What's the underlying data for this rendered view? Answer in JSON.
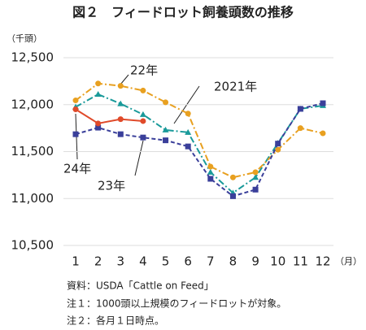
{
  "chart_data": {
    "type": "line",
    "title": "図２　フィードロット飼養頭数の推移",
    "y_unit": "（千頭）",
    "x_unit": "（月）",
    "categories": [
      "1",
      "2",
      "3",
      "4",
      "5",
      "6",
      "7",
      "8",
      "9",
      "10",
      "11",
      "12"
    ],
    "ylim": [
      10500,
      12500
    ],
    "yticks": [
      {
        "value": 10500,
        "label": "10,500"
      },
      {
        "value": 11000,
        "label": "11,000"
      },
      {
        "value": 11500,
        "label": "11,500"
      },
      {
        "value": 12000,
        "label": "12,000"
      },
      {
        "value": 12500,
        "label": "12,500"
      }
    ],
    "grid": true,
    "series": [
      {
        "name": "2021年",
        "color": "#1a9a9a",
        "values": [
          11975,
          12110,
          12010,
          11895,
          11730,
          11705,
          11280,
          11060,
          11225,
          11590,
          11955,
          11990
        ]
      },
      {
        "name": "22年",
        "color": "#e8a020",
        "values": [
          12045,
          12225,
          12200,
          12150,
          12025,
          11905,
          11340,
          11225,
          11280,
          11520,
          11750,
          11695
        ]
      },
      {
        "name": "23年",
        "color": "#3a3f9a",
        "values": [
          11685,
          11755,
          11685,
          11650,
          11620,
          11555,
          11210,
          11025,
          11095,
          11585,
          11955,
          12015
        ]
      },
      {
        "name": "24年",
        "color": "#e04a2a",
        "values": [
          11950,
          11800,
          11845,
          11825,
          null,
          null,
          null,
          null,
          null,
          null,
          null,
          null
        ]
      }
    ],
    "notes": [
      "資料：USDA「Cattle on Feed」",
      "注１：1000頭以上規模のフィードロットが対象。",
      "注２：各月１日時点。"
    ]
  }
}
